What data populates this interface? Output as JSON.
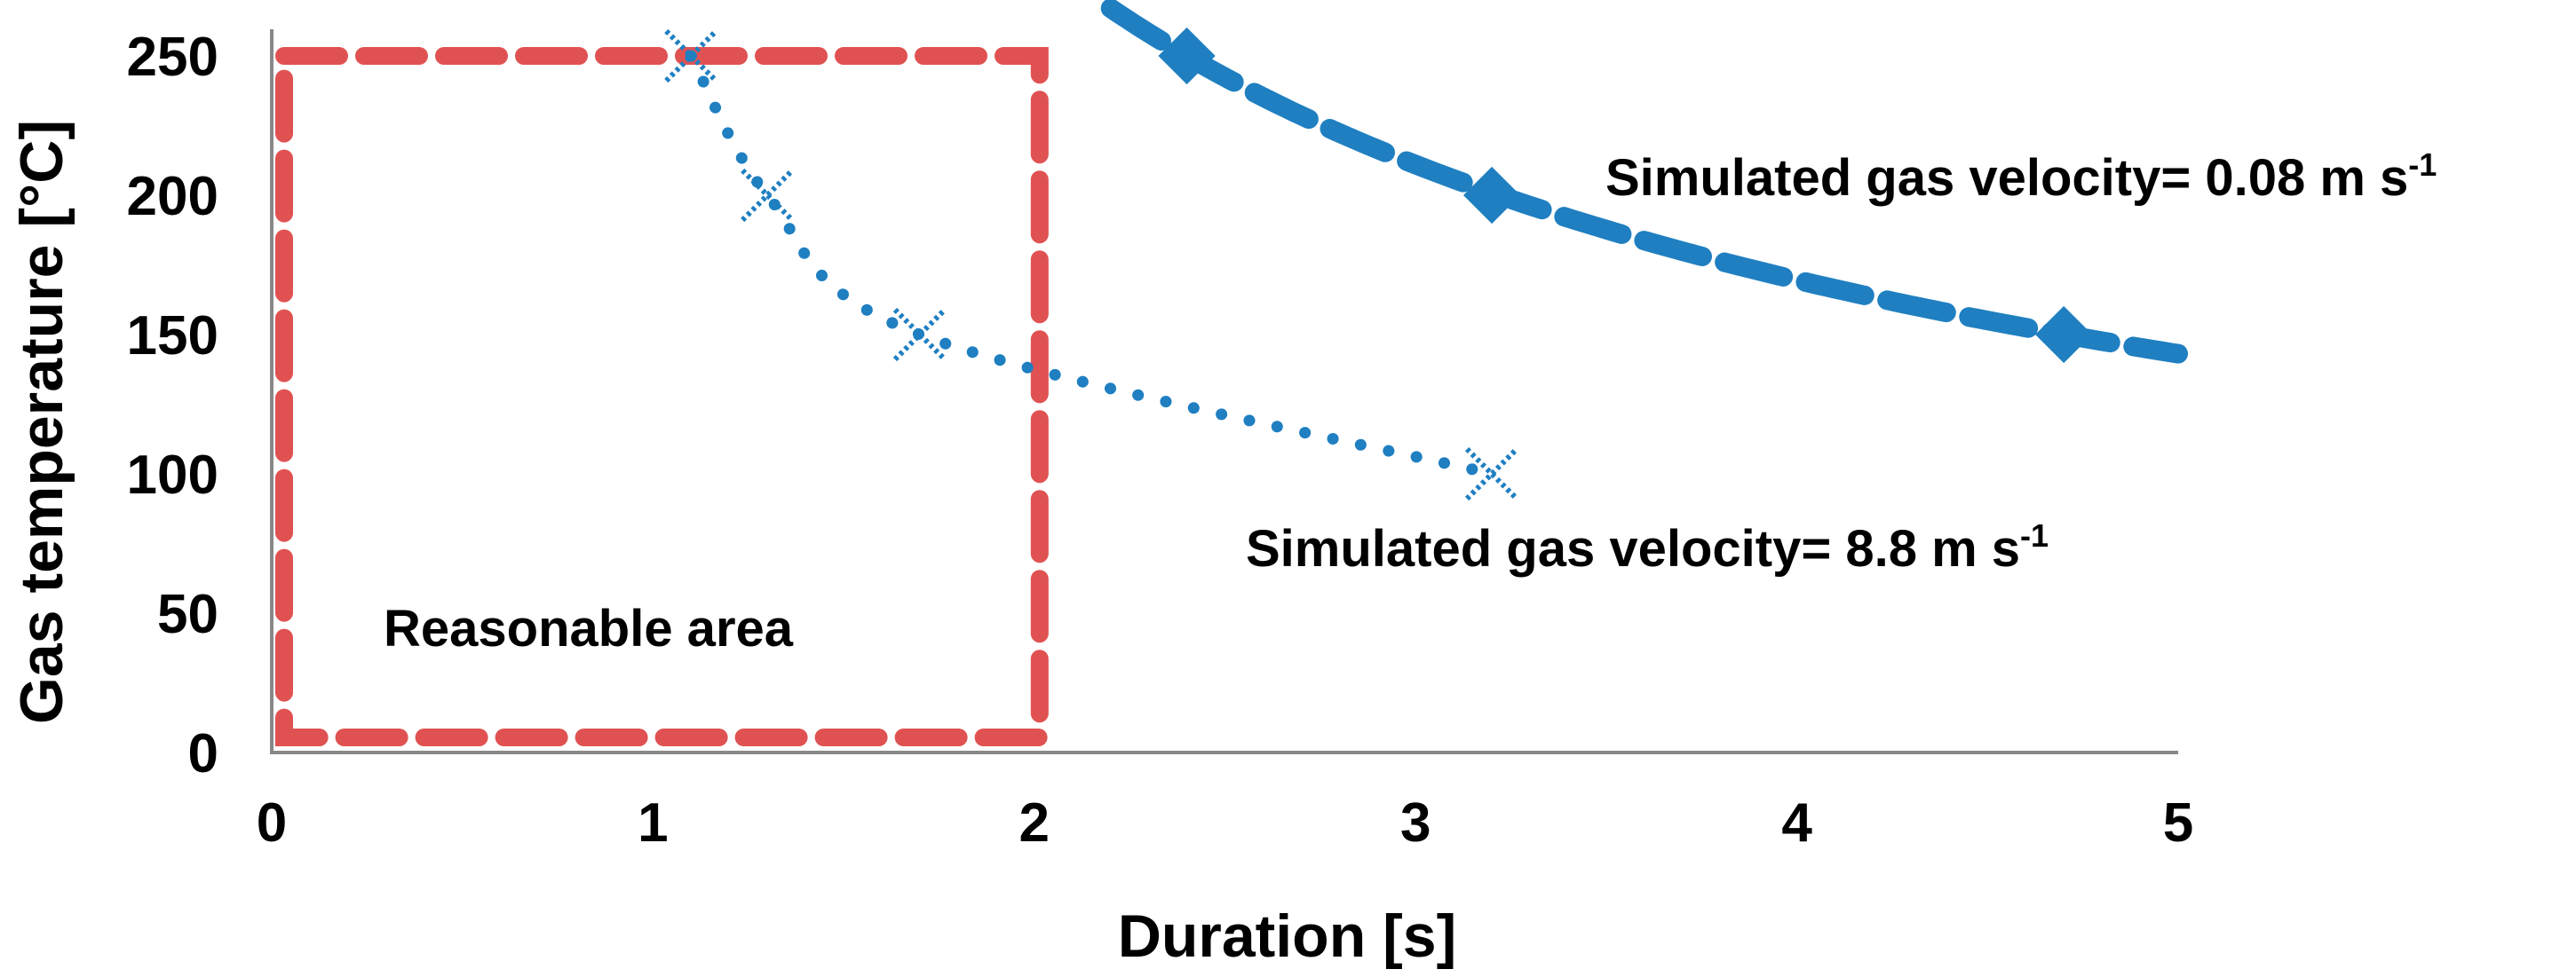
{
  "chart_data": {
    "type": "line",
    "title": "",
    "xlabel": "Duration [s]",
    "ylabel": "Gas temperature [°C]",
    "xlim": [
      0,
      5
    ],
    "ylim": [
      0,
      250
    ],
    "x_ticks": [
      "0",
      "1",
      "2",
      "3",
      "4",
      "5"
    ],
    "y_ticks": [
      "0",
      "50",
      "100",
      "150",
      "200",
      "250"
    ],
    "grid": false,
    "legend": "none",
    "series": [
      {
        "name": "Simulated gas velocity= 8.8 m s-1",
        "color": "#1f7fc1",
        "line_style": "dotted",
        "marker": "x",
        "points": [
          {
            "x": 1.1,
            "y": 250
          },
          {
            "x": 1.3,
            "y": 200
          },
          {
            "x": 1.7,
            "y": 150
          },
          {
            "x": 3.2,
            "y": 100
          }
        ]
      },
      {
        "name": "Simulated gas velocity= 0.08 m s-1",
        "color": "#1f7fc1",
        "line_style": "dashed",
        "marker": "diamond",
        "points": [
          {
            "x": 2.4,
            "y": 250
          },
          {
            "x": 3.2,
            "y": 200
          },
          {
            "x": 4.7,
            "y": 150
          }
        ],
        "trend_extends_to": {
          "x_start": 2.2,
          "x_end": 5.0
        }
      }
    ],
    "regions": [
      {
        "name": "Reasonable area",
        "color": "#e05252",
        "x_range": [
          0,
          2
        ],
        "y_range": [
          0,
          250
        ]
      }
    ],
    "annotations": [
      {
        "id": "fast",
        "text": "Simulated gas velocity= 8.8 m s",
        "superscript": "-1"
      },
      {
        "id": "slow",
        "text": "Simulated gas velocity= 0.08 m s",
        "superscript": "-1"
      },
      {
        "id": "area",
        "text": "Reasonable area"
      }
    ]
  }
}
